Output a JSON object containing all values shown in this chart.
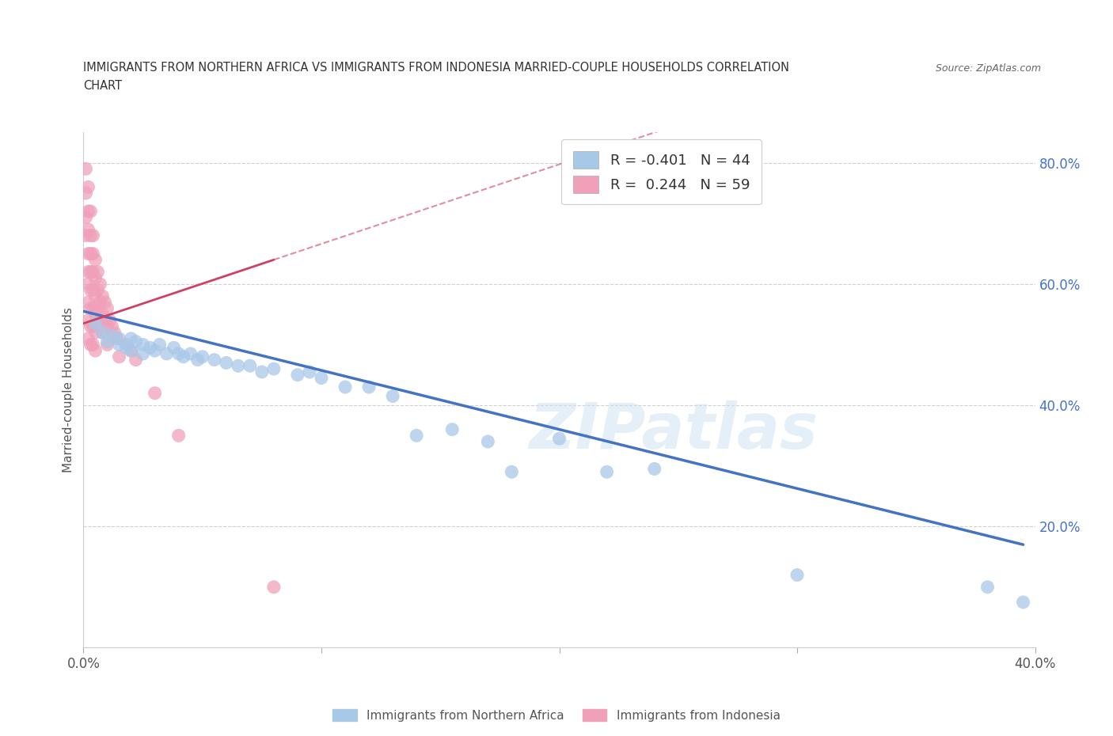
{
  "title_line1": "IMMIGRANTS FROM NORTHERN AFRICA VS IMMIGRANTS FROM INDONESIA MARRIED-COUPLE HOUSEHOLDS CORRELATION",
  "title_line2": "CHART",
  "source": "Source: ZipAtlas.com",
  "xlabel_legend": "Immigrants from Northern Africa",
  "ylabel": "Married-couple Households",
  "xlim": [
    0.0,
    0.4
  ],
  "ylim": [
    0.0,
    0.85
  ],
  "xticks": [
    0.0,
    0.1,
    0.2,
    0.3,
    0.4
  ],
  "xticklabels": [
    "0.0%",
    "",
    "",
    "",
    "40.0%"
  ],
  "yticks_right": [
    0.2,
    0.4,
    0.6,
    0.8
  ],
  "ytick_right_labels": [
    "20.0%",
    "40.0%",
    "60.0%",
    "80.0%"
  ],
  "blue_R": "-0.401",
  "blue_N": "44",
  "pink_R": "0.244",
  "pink_N": "59",
  "blue_color": "#a8c8e8",
  "pink_color": "#f0a0b8",
  "blue_line_color": "#4472c4",
  "pink_line_color": "#d04060",
  "watermark": "ZIPatlas",
  "blue_scatter_x": [
    0.005,
    0.008,
    0.01,
    0.012,
    0.015,
    0.015,
    0.018,
    0.02,
    0.02,
    0.022,
    0.025,
    0.025,
    0.028,
    0.03,
    0.032,
    0.035,
    0.038,
    0.04,
    0.042,
    0.045,
    0.048,
    0.05,
    0.055,
    0.06,
    0.065,
    0.07,
    0.075,
    0.08,
    0.09,
    0.095,
    0.1,
    0.11,
    0.12,
    0.13,
    0.14,
    0.155,
    0.17,
    0.18,
    0.2,
    0.22,
    0.24,
    0.3,
    0.38,
    0.395
  ],
  "blue_scatter_y": [
    0.535,
    0.52,
    0.505,
    0.515,
    0.51,
    0.5,
    0.495,
    0.51,
    0.49,
    0.505,
    0.5,
    0.485,
    0.495,
    0.49,
    0.5,
    0.485,
    0.495,
    0.485,
    0.48,
    0.485,
    0.475,
    0.48,
    0.475,
    0.47,
    0.465,
    0.465,
    0.455,
    0.46,
    0.45,
    0.455,
    0.445,
    0.43,
    0.43,
    0.415,
    0.35,
    0.36,
    0.34,
    0.29,
    0.345,
    0.29,
    0.295,
    0.12,
    0.1,
    0.075
  ],
  "pink_scatter_x": [
    0.001,
    0.001,
    0.001,
    0.001,
    0.002,
    0.002,
    0.002,
    0.002,
    0.002,
    0.002,
    0.002,
    0.002,
    0.002,
    0.003,
    0.003,
    0.003,
    0.003,
    0.003,
    0.003,
    0.003,
    0.003,
    0.004,
    0.004,
    0.004,
    0.004,
    0.004,
    0.004,
    0.004,
    0.005,
    0.005,
    0.005,
    0.005,
    0.005,
    0.005,
    0.006,
    0.006,
    0.006,
    0.007,
    0.007,
    0.007,
    0.008,
    0.008,
    0.008,
    0.009,
    0.009,
    0.01,
    0.01,
    0.01,
    0.011,
    0.012,
    0.013,
    0.014,
    0.015,
    0.018,
    0.02,
    0.022,
    0.03,
    0.04,
    0.08
  ],
  "pink_scatter_y": [
    0.79,
    0.75,
    0.71,
    0.68,
    0.76,
    0.72,
    0.69,
    0.65,
    0.62,
    0.6,
    0.57,
    0.54,
    0.51,
    0.72,
    0.68,
    0.65,
    0.62,
    0.59,
    0.56,
    0.53,
    0.5,
    0.68,
    0.65,
    0.62,
    0.59,
    0.56,
    0.53,
    0.5,
    0.64,
    0.61,
    0.58,
    0.55,
    0.52,
    0.49,
    0.62,
    0.59,
    0.56,
    0.6,
    0.57,
    0.54,
    0.58,
    0.55,
    0.52,
    0.57,
    0.54,
    0.56,
    0.53,
    0.5,
    0.54,
    0.53,
    0.52,
    0.51,
    0.48,
    0.5,
    0.49,
    0.475,
    0.42,
    0.35,
    0.1
  ],
  "blue_line_x": [
    0.0,
    0.395
  ],
  "blue_line_y": [
    0.555,
    0.17
  ],
  "pink_line_x": [
    0.0,
    0.08
  ],
  "pink_line_y": [
    0.535,
    0.64
  ]
}
